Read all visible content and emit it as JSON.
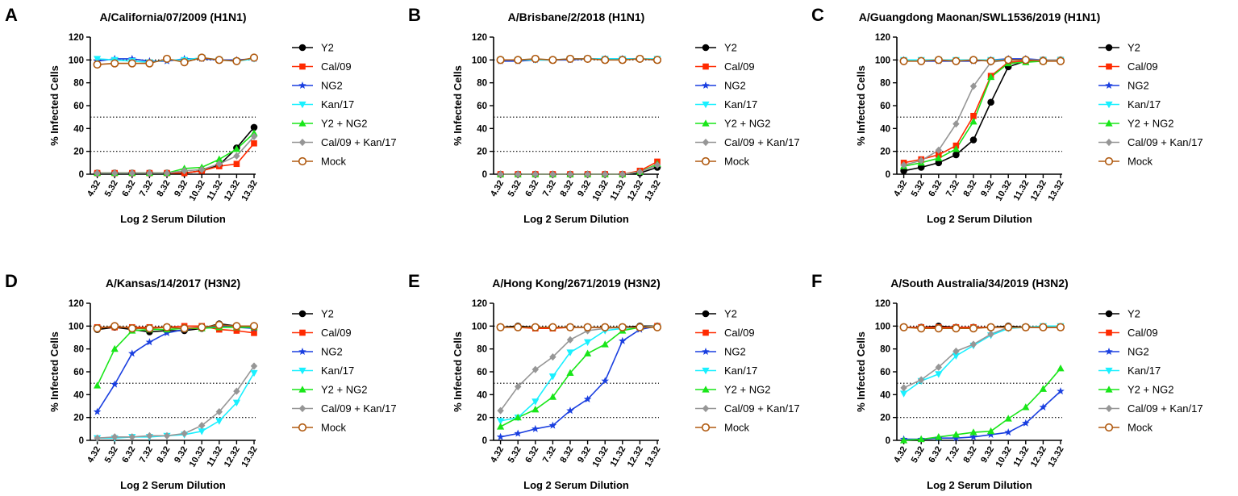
{
  "colors": {
    "Y2": "#000000",
    "Cal/09": "#ff2a00",
    "NG2": "#1a3fe0",
    "Kan/17": "#19f0ff",
    "Y2 + NG2": "#19e619",
    "Cal/09 + Kan/17": "#969696",
    "Mock": "#b05a10",
    "axis": "#000000",
    "reference": "#000000"
  },
  "markers": {
    "Y2": "circle",
    "Cal/09": "square",
    "NG2": "star",
    "Kan/17": "triangle-down",
    "Y2 + NG2": "triangle-up",
    "Cal/09 + Kan/17": "diamond",
    "Mock": "open-circle"
  },
  "chart_data": [
    {
      "panel": "A",
      "type": "line",
      "title": "A/California/07/2009 (H1N1)",
      "xlabel": "Log 2 Serum Dilution",
      "ylabel": "% Infected Cells",
      "categories": [
        "4.32",
        "5.32",
        "6.32",
        "7.32",
        "8.32",
        "9.32",
        "10.32",
        "11.32",
        "12.32",
        "13.32"
      ],
      "yticks": [
        "0",
        "20",
        "40",
        "60",
        "80",
        "100",
        "120"
      ],
      "ylim": [
        0,
        120
      ],
      "reference_lines": [
        100,
        50,
        20
      ],
      "legend": "right",
      "series": [
        {
          "name": "Y2",
          "values": [
            1,
            1,
            1,
            1,
            1,
            1,
            3,
            8,
            23,
            41
          ]
        },
        {
          "name": "Cal/09",
          "values": [
            1,
            1,
            1,
            1,
            1,
            1,
            3,
            7,
            9,
            27
          ]
        },
        {
          "name": "NG2",
          "values": [
            99,
            101,
            101,
            99,
            99,
            101,
            101,
            100,
            100,
            101
          ]
        },
        {
          "name": "Kan/17",
          "values": [
            101,
            100,
            99,
            98,
            100,
            100,
            102,
            100,
            99,
            101
          ]
        },
        {
          "name": "Y2 + NG2",
          "values": [
            1,
            1,
            1,
            1,
            1,
            5,
            6,
            13,
            22,
            36
          ]
        },
        {
          "name": "Cal/09 + Kan/17",
          "values": [
            1,
            1,
            1,
            1,
            1,
            3,
            4,
            9,
            16,
            33
          ]
        },
        {
          "name": "Mock",
          "values": [
            96,
            97,
            97,
            97,
            101,
            98,
            102,
            100,
            99,
            102
          ]
        }
      ]
    },
    {
      "panel": "B",
      "type": "line",
      "title": "A/Brisbane/2/2018 (H1N1)",
      "xlabel": "Log 2 Serum Dilution",
      "ylabel": "% Infected Cells",
      "categories": [
        "4.32",
        "5.32",
        "6.32",
        "7.32",
        "8.32",
        "9.32",
        "10.32",
        "11.32",
        "12.32",
        "13.32"
      ],
      "yticks": [
        "0",
        "20",
        "40",
        "60",
        "80",
        "100",
        "120"
      ],
      "ylim": [
        0,
        120
      ],
      "reference_lines": [
        100,
        50,
        20
      ],
      "legend": "right",
      "series": [
        {
          "name": "Y2",
          "values": [
            0,
            0,
            0,
            0,
            0,
            0,
            0,
            0,
            1,
            6
          ]
        },
        {
          "name": "Cal/09",
          "values": [
            0,
            0,
            0,
            0,
            0,
            0,
            0,
            0,
            3,
            11
          ]
        },
        {
          "name": "NG2",
          "values": [
            99,
            99,
            100,
            100,
            100,
            101,
            101,
            101,
            101,
            100
          ]
        },
        {
          "name": "Kan/17",
          "values": [
            100,
            100,
            100,
            100,
            101,
            101,
            101,
            101,
            101,
            101
          ]
        },
        {
          "name": "Y2 + NG2",
          "values": [
            0,
            0,
            0,
            0,
            0,
            0,
            0,
            0,
            2,
            9
          ]
        },
        {
          "name": "Cal/09 + Kan/17",
          "values": [
            0,
            0,
            0,
            0,
            0,
            0,
            0,
            0,
            2,
            8
          ]
        },
        {
          "name": "Mock",
          "values": [
            100,
            100,
            101,
            100,
            101,
            101,
            100,
            100,
            101,
            100
          ]
        }
      ]
    },
    {
      "panel": "C",
      "type": "line",
      "title": "A/Guangdong Maonan/SWL1536/2019 (H1N1)",
      "xlabel": "Log 2 Serum Dilution",
      "ylabel": "% Infected Cells",
      "categories": [
        "4.32",
        "5.32",
        "6.32",
        "7.32",
        "8.32",
        "9.32",
        "10.32",
        "11.32",
        "12.32",
        "13.32"
      ],
      "yticks": [
        "0",
        "20",
        "40",
        "60",
        "80",
        "100",
        "120"
      ],
      "ylim": [
        0,
        120
      ],
      "reference_lines": [
        100,
        50,
        20
      ],
      "legend": "right",
      "series": [
        {
          "name": "Y2",
          "values": [
            3,
            6,
            10,
            17,
            30,
            63,
            94,
            99,
            100,
            100
          ]
        },
        {
          "name": "Cal/09",
          "values": [
            10,
            13,
            17,
            25,
            51,
            86,
            98,
            99,
            100,
            100
          ]
        },
        {
          "name": "NG2",
          "values": [
            100,
            99,
            99,
            99,
            99,
            100,
            101,
            101,
            100,
            100
          ]
        },
        {
          "name": "Kan/17",
          "values": [
            100,
            100,
            100,
            100,
            100,
            100,
            100,
            100,
            100,
            100
          ]
        },
        {
          "name": "Y2 + NG2",
          "values": [
            7,
            10,
            14,
            22,
            46,
            85,
            97,
            98,
            99,
            100
          ]
        },
        {
          "name": "Cal/09 + Kan/17",
          "values": [
            8,
            12,
            21,
            44,
            77,
            98,
            100,
            100,
            100,
            100
          ]
        },
        {
          "name": "Mock",
          "values": [
            99,
            99,
            100,
            99,
            100,
            99,
            100,
            100,
            99,
            99
          ]
        }
      ]
    },
    {
      "panel": "D",
      "type": "line",
      "title": "A/Kansas/14/2017 (H3N2)",
      "xlabel": "Log 2 Serum Dilution",
      "ylabel": "% Infected Cells",
      "categories": [
        "4.32",
        "5.32",
        "6.32",
        "7.32",
        "8.32",
        "9.32",
        "10.32",
        "11.32",
        "12.32",
        "13.32"
      ],
      "yticks": [
        "0",
        "20",
        "40",
        "60",
        "80",
        "100",
        "120"
      ],
      "ylim": [
        0,
        120
      ],
      "reference_lines": [
        100,
        50,
        20
      ],
      "legend": "right",
      "series": [
        {
          "name": "Y2",
          "values": [
            97,
            99,
            97,
            95,
            96,
            96,
            98,
            102,
            100,
            99
          ]
        },
        {
          "name": "Cal/09",
          "values": [
            99,
            99,
            99,
            99,
            99,
            100,
            100,
            97,
            96,
            94
          ]
        },
        {
          "name": "NG2",
          "values": [
            25,
            49,
            76,
            86,
            94,
            97,
            99,
            100,
            99,
            98
          ]
        },
        {
          "name": "Kan/17",
          "values": [
            2,
            2,
            3,
            3,
            4,
            5,
            8,
            17,
            33,
            59
          ]
        },
        {
          "name": "Y2 + NG2",
          "values": [
            48,
            80,
            96,
            97,
            97,
            98,
            98,
            99,
            99,
            99
          ]
        },
        {
          "name": "Cal/09 + Kan/17",
          "values": [
            2,
            3,
            3,
            4,
            4,
            6,
            13,
            25,
            43,
            65
          ]
        },
        {
          "name": "Mock",
          "values": [
            98,
            100,
            98,
            98,
            99,
            98,
            99,
            101,
            100,
            100
          ]
        }
      ]
    },
    {
      "panel": "E",
      "type": "line",
      "title": "A/Hong Kong/2671/2019 (H3N2)",
      "xlabel": "Log 2 Serum Dilution",
      "ylabel": "% Infected Cells",
      "categories": [
        "4.32",
        "5.32",
        "6.32",
        "7.32",
        "8.32",
        "9.32",
        "10.32",
        "11.32",
        "12.32",
        "13.32"
      ],
      "yticks": [
        "0",
        "20",
        "40",
        "60",
        "80",
        "100",
        "120"
      ],
      "ylim": [
        0,
        120
      ],
      "reference_lines": [
        100,
        50,
        20
      ],
      "legend": "right",
      "series": [
        {
          "name": "Y2",
          "values": [
            99,
            100,
            99,
            99,
            99,
            99,
            99,
            99,
            100,
            100
          ]
        },
        {
          "name": "Cal/09",
          "values": [
            99,
            99,
            98,
            98,
            99,
            99,
            99,
            99,
            99,
            100
          ]
        },
        {
          "name": "NG2",
          "values": [
            3,
            6,
            10,
            13,
            26,
            36,
            52,
            87,
            97,
            100
          ]
        },
        {
          "name": "Kan/17",
          "values": [
            17,
            20,
            34,
            56,
            77,
            86,
            96,
            98,
            99,
            99
          ]
        },
        {
          "name": "Y2 + NG2",
          "values": [
            12,
            20,
            27,
            38,
            59,
            76,
            84,
            96,
            99,
            100
          ]
        },
        {
          "name": "Cal/09 + Kan/17",
          "values": [
            26,
            47,
            62,
            73,
            88,
            96,
            98,
            99,
            99,
            100
          ]
        },
        {
          "name": "Mock",
          "values": [
            99,
            99,
            99,
            99,
            99,
            99,
            99,
            99,
            99,
            99
          ]
        }
      ]
    },
    {
      "panel": "F",
      "type": "line",
      "title": "A/South Australia/34/2019 (H3N2)",
      "xlabel": "Log 2 Serum Dilution",
      "ylabel": "% Infected Cells",
      "categories": [
        "4.32",
        "5.32",
        "6.32",
        "7.32",
        "8.32",
        "9.32",
        "10.32",
        "11.32",
        "12.32",
        "13.32"
      ],
      "yticks": [
        "0",
        "20",
        "40",
        "60",
        "80",
        "100",
        "120"
      ],
      "ylim": [
        0,
        120
      ],
      "reference_lines": [
        100,
        50,
        20
      ],
      "legend": "right",
      "series": [
        {
          "name": "Y2",
          "values": [
            99,
            99,
            100,
            99,
            99,
            99,
            100,
            99,
            99,
            99
          ]
        },
        {
          "name": "Cal/09",
          "values": [
            99,
            99,
            99,
            99,
            99,
            99,
            99,
            99,
            99,
            99
          ]
        },
        {
          "name": "NG2",
          "values": [
            1,
            1,
            2,
            2,
            3,
            5,
            7,
            15,
            29,
            43
          ]
        },
        {
          "name": "Kan/17",
          "values": [
            41,
            52,
            58,
            74,
            83,
            92,
            98,
            99,
            100,
            100
          ]
        },
        {
          "name": "Y2 + NG2",
          "values": [
            0,
            1,
            3,
            5,
            7,
            8,
            19,
            29,
            45,
            63
          ]
        },
        {
          "name": "Cal/09 + Kan/17",
          "values": [
            46,
            53,
            64,
            78,
            84,
            93,
            99,
            99,
            99,
            99
          ]
        },
        {
          "name": "Mock",
          "values": [
            99,
            98,
            98,
            98,
            98,
            99,
            99,
            99,
            99,
            99
          ]
        }
      ]
    }
  ]
}
